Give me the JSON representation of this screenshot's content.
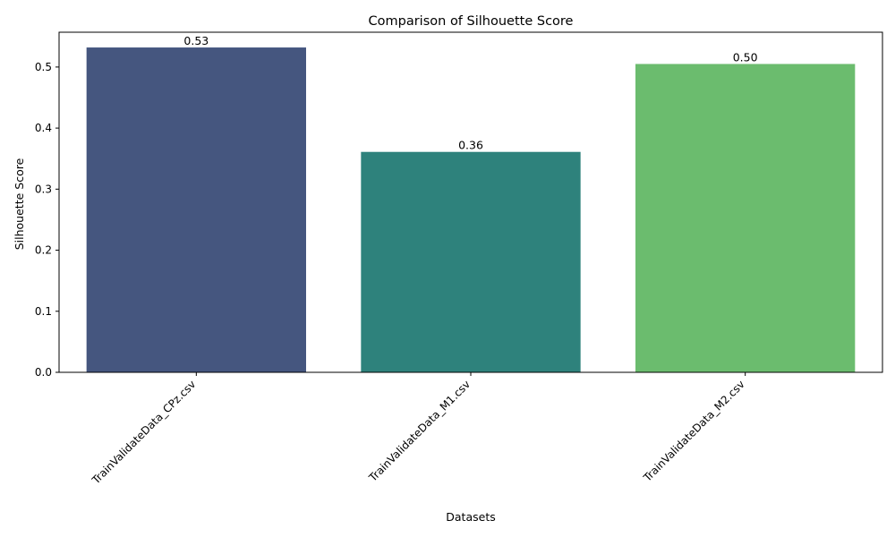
{
  "chart_data": {
    "type": "bar",
    "title": "Comparison of Silhouette Score",
    "xlabel": "Datasets",
    "ylabel": "Silhouette Score",
    "categories": [
      "TrainValidateData_CPz.csv",
      "TrainValidateData_M1.csv",
      "TrainValidateData_M2.csv"
    ],
    "values": [
      0.532,
      0.361,
      0.505
    ],
    "value_labels": [
      "0.53",
      "0.36",
      "0.50"
    ],
    "colors": [
      "#45567f",
      "#2e827c",
      "#6bbc6e"
    ],
    "ylim": [
      0,
      0.557
    ],
    "yticks": [
      0.0,
      0.1,
      0.2,
      0.3,
      0.4,
      0.5
    ],
    "ytick_labels": [
      "0.0",
      "0.1",
      "0.2",
      "0.3",
      "0.4",
      "0.5"
    ],
    "grid": false,
    "legend": "none"
  }
}
